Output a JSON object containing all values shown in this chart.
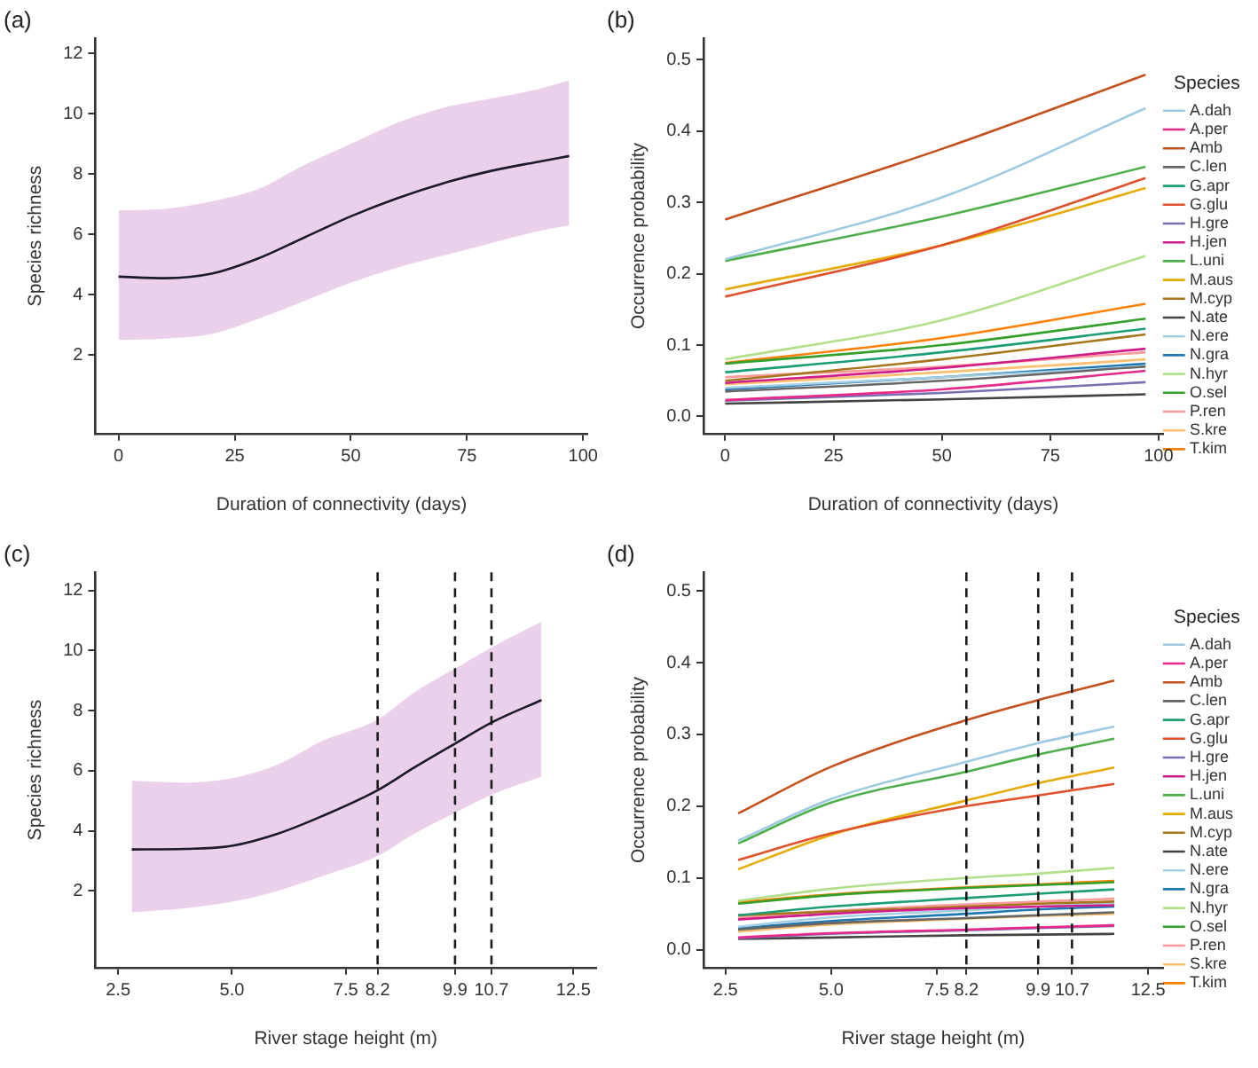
{
  "chart_data": [
    {
      "type": "line",
      "title": "(a)",
      "xlabel": "Duration of connectivity (days)",
      "ylabel": "Species richness",
      "marker": "none",
      "grid": false,
      "legend": false,
      "x": [
        0,
        10,
        20,
        30,
        40,
        50,
        60,
        70,
        80,
        90,
        97
      ],
      "xlim": [
        -5,
        101
      ],
      "xticks": [
        0,
        25,
        50,
        75,
        100
      ],
      "ylim": [
        -0.6,
        12.5
      ],
      "yticks": [
        2,
        4,
        6,
        8,
        10,
        12
      ],
      "series": [
        {
          "color": "#1a1a2a",
          "values": [
            4.6,
            4.55,
            4.7,
            5.2,
            5.9,
            6.6,
            7.2,
            7.7,
            8.1,
            8.4,
            8.6
          ],
          "lower": [
            2.5,
            2.55,
            2.7,
            3.2,
            3.8,
            4.4,
            4.9,
            5.3,
            5.7,
            6.1,
            6.3
          ],
          "upper": [
            6.8,
            6.85,
            7.1,
            7.5,
            8.3,
            9.0,
            9.7,
            10.2,
            10.5,
            10.8,
            11.1
          ]
        }
      ]
    },
    {
      "type": "line",
      "title": "(b)",
      "xlabel": "Duration of connectivity (days)",
      "ylabel": "Occurrence probability",
      "legend_title": "Species",
      "legend": "right",
      "marker": "none",
      "grid": false,
      "x": [
        0,
        50,
        97
      ],
      "xlim": [
        -5,
        101
      ],
      "xticks": [
        0,
        25,
        50,
        75,
        100
      ],
      "ylim": [
        -0.024,
        0.53
      ],
      "yticks": [
        {
          "value": 0,
          "label": "0.0"
        },
        0.1,
        0.2,
        0.3,
        0.4,
        0.5
      ],
      "series": [
        {
          "name": "A.dah",
          "color": "#9ecae1",
          "values": [
            0.22,
            0.307,
            0.432
          ]
        },
        {
          "name": "A.per",
          "color": "#e7298a",
          "values": [
            0.023,
            0.038,
            0.064
          ]
        },
        {
          "name": "Amb",
          "color": "#c4501c",
          "values": [
            0.276,
            0.375,
            0.479
          ]
        },
        {
          "name": "C.len",
          "color": "#666666",
          "values": [
            0.035,
            0.05,
            0.07
          ]
        },
        {
          "name": "G.apr",
          "color": "#1b9e77",
          "values": [
            0.062,
            0.09,
            0.123
          ]
        },
        {
          "name": "G.glu",
          "color": "#e0502a",
          "values": [
            0.168,
            0.24,
            0.334
          ]
        },
        {
          "name": "H.gre",
          "color": "#7570b3",
          "values": [
            0.022,
            0.033,
            0.048
          ]
        },
        {
          "name": "H.jen",
          "color": "#d01c8b",
          "values": [
            0.047,
            0.068,
            0.095
          ]
        },
        {
          "name": "L.uni",
          "color": "#4daf4a",
          "values": [
            0.218,
            0.28,
            0.35
          ]
        },
        {
          "name": "M.aus",
          "color": "#e6ab02",
          "values": [
            0.178,
            0.24,
            0.32
          ]
        },
        {
          "name": "M.cyp",
          "color": "#a6761d",
          "values": [
            0.05,
            0.08,
            0.115
          ]
        },
        {
          "name": "N.ate",
          "color": "#444444",
          "values": [
            0.018,
            0.024,
            0.031
          ]
        },
        {
          "name": "N.ere",
          "color": "#a6cee3",
          "values": [
            0.04,
            0.055,
            0.07
          ]
        },
        {
          "name": "N.gra",
          "color": "#1f78b4",
          "values": [
            0.038,
            0.055,
            0.074
          ]
        },
        {
          "name": "N.hyr",
          "color": "#b2df8a",
          "values": [
            0.08,
            0.135,
            0.225
          ]
        },
        {
          "name": "O.sel",
          "color": "#33a02c",
          "values": [
            0.074,
            0.1,
            0.137
          ]
        },
        {
          "name": "P.ren",
          "color": "#fb9a99",
          "values": [
            0.055,
            0.07,
            0.09
          ]
        },
        {
          "name": "S.kre",
          "color": "#fdbf6f",
          "values": [
            0.045,
            0.062,
            0.08
          ]
        },
        {
          "name": "T.kim",
          "color": "#ff7f00",
          "values": [
            0.075,
            0.11,
            0.158
          ]
        }
      ]
    },
    {
      "type": "line",
      "title": "(c)",
      "xlabel": "River stage height (m)",
      "ylabel": "Species richness",
      "marker": "none",
      "grid": false,
      "legend": false,
      "x": [
        2.8,
        4,
        5,
        6,
        7,
        8.2,
        9,
        9.9,
        10.7,
        11.8
      ],
      "xlim": [
        2.0,
        13.0
      ],
      "xticks": [
        2.5,
        {
          "value": 5,
          "label": "5.0"
        },
        7.5,
        8.2,
        9.9,
        10.7,
        12.5
      ],
      "ylim": [
        -0.55,
        12.6
      ],
      "yticks": [
        2,
        4,
        6,
        8,
        10,
        12
      ],
      "ref_lines": [
        {
          "axis": "x",
          "value": 8.2,
          "color": "#1a1a1a",
          "line_style": "dashed"
        },
        {
          "axis": "x",
          "value": 9.9,
          "color": "#1a1a1a",
          "line_style": "dashed"
        },
        {
          "axis": "x",
          "value": 10.7,
          "color": "#1a1a1a",
          "line_style": "dashed"
        }
      ],
      "series": [
        {
          "color": "#1a1a2a",
          "values": [
            3.38,
            3.4,
            3.5,
            3.9,
            4.5,
            5.35,
            6.1,
            6.9,
            7.6,
            8.35
          ],
          "lower": [
            1.29,
            1.43,
            1.64,
            2.0,
            2.5,
            3.16,
            3.9,
            4.6,
            5.2,
            5.8
          ],
          "upper": [
            5.66,
            5.6,
            5.75,
            6.2,
            7.0,
            7.7,
            8.6,
            9.4,
            10.1,
            10.95
          ]
        }
      ]
    },
    {
      "type": "line",
      "title": "(d)",
      "xlabel": "River stage height (m)",
      "ylabel": "Occurrence probability",
      "legend_title": "Species",
      "legend": "right",
      "marker": "none",
      "grid": false,
      "x": [
        2.8,
        5,
        8.2,
        9.9,
        11.7
      ],
      "xlim": [
        1.98,
        12.85
      ],
      "xticks": [
        2.5,
        {
          "value": 5,
          "label": "5.0"
        },
        7.5,
        8.2,
        9.9,
        10.7,
        12.5
      ],
      "ylim": [
        -0.025,
        0.526
      ],
      "yticks": [
        {
          "value": 0,
          "label": "0.0"
        },
        0.1,
        0.2,
        0.3,
        0.4,
        0.5
      ],
      "ref_lines": [
        {
          "axis": "x",
          "value": 8.2,
          "color": "#1a1a1a",
          "line_style": "dashed"
        },
        {
          "axis": "x",
          "value": 9.9,
          "color": "#1a1a1a",
          "line_style": "dashed"
        },
        {
          "axis": "x",
          "value": 10.7,
          "color": "#1a1a1a",
          "line_style": "dashed"
        }
      ],
      "series": [
        {
          "name": "A.dah",
          "color": "#9ecae1",
          "values": [
            0.152,
            0.21,
            0.262,
            0.288,
            0.311
          ]
        },
        {
          "name": "A.per",
          "color": "#e7298a",
          "values": [
            0.017,
            0.023,
            0.028,
            0.031,
            0.034
          ]
        },
        {
          "name": "Amb",
          "color": "#c4501c",
          "values": [
            0.19,
            0.255,
            0.32,
            0.348,
            0.375
          ]
        },
        {
          "name": "C.len",
          "color": "#666666",
          "values": [
            0.028,
            0.037,
            0.044,
            0.048,
            0.052
          ]
        },
        {
          "name": "G.apr",
          "color": "#1b9e77",
          "values": [
            0.048,
            0.06,
            0.072,
            0.078,
            0.084
          ]
        },
        {
          "name": "G.glu",
          "color": "#e0502a",
          "values": [
            0.125,
            0.162,
            0.2,
            0.215,
            0.231
          ]
        },
        {
          "name": "H.gre",
          "color": "#7570b3",
          "values": [
            0.016,
            0.022,
            0.027,
            0.03,
            0.033
          ]
        },
        {
          "name": "H.jen",
          "color": "#d01c8b",
          "values": [
            0.042,
            0.05,
            0.058,
            0.06,
            0.062
          ]
        },
        {
          "name": "L.uni",
          "color": "#4daf4a",
          "values": [
            0.148,
            0.205,
            0.248,
            0.272,
            0.294
          ]
        },
        {
          "name": "M.aus",
          "color": "#e6ab02",
          "values": [
            0.112,
            0.16,
            0.208,
            0.232,
            0.254
          ]
        },
        {
          "name": "M.cyp",
          "color": "#a6761d",
          "values": [
            0.048,
            0.053,
            0.06,
            0.064,
            0.067
          ]
        },
        {
          "name": "N.ate",
          "color": "#444444",
          "values": [
            0.015,
            0.017,
            0.02,
            0.021,
            0.022
          ]
        },
        {
          "name": "N.ere",
          "color": "#a6cee3",
          "values": [
            0.032,
            0.045,
            0.055,
            0.06,
            0.065
          ]
        },
        {
          "name": "N.gra",
          "color": "#1f78b4",
          "values": [
            0.03,
            0.04,
            0.05,
            0.056,
            0.06
          ]
        },
        {
          "name": "N.hyr",
          "color": "#b2df8a",
          "values": [
            0.068,
            0.085,
            0.1,
            0.106,
            0.114
          ]
        },
        {
          "name": "O.sel",
          "color": "#33a02c",
          "values": [
            0.064,
            0.076,
            0.086,
            0.09,
            0.094
          ]
        },
        {
          "name": "P.ren",
          "color": "#fb9a99",
          "values": [
            0.045,
            0.054,
            0.063,
            0.067,
            0.071
          ]
        },
        {
          "name": "S.kre",
          "color": "#fdbf6f",
          "values": [
            0.025,
            0.035,
            0.043,
            0.047,
            0.05
          ]
        },
        {
          "name": "T.kim",
          "color": "#ff7f00",
          "values": [
            0.066,
            0.077,
            0.087,
            0.091,
            0.096
          ]
        }
      ]
    }
  ]
}
